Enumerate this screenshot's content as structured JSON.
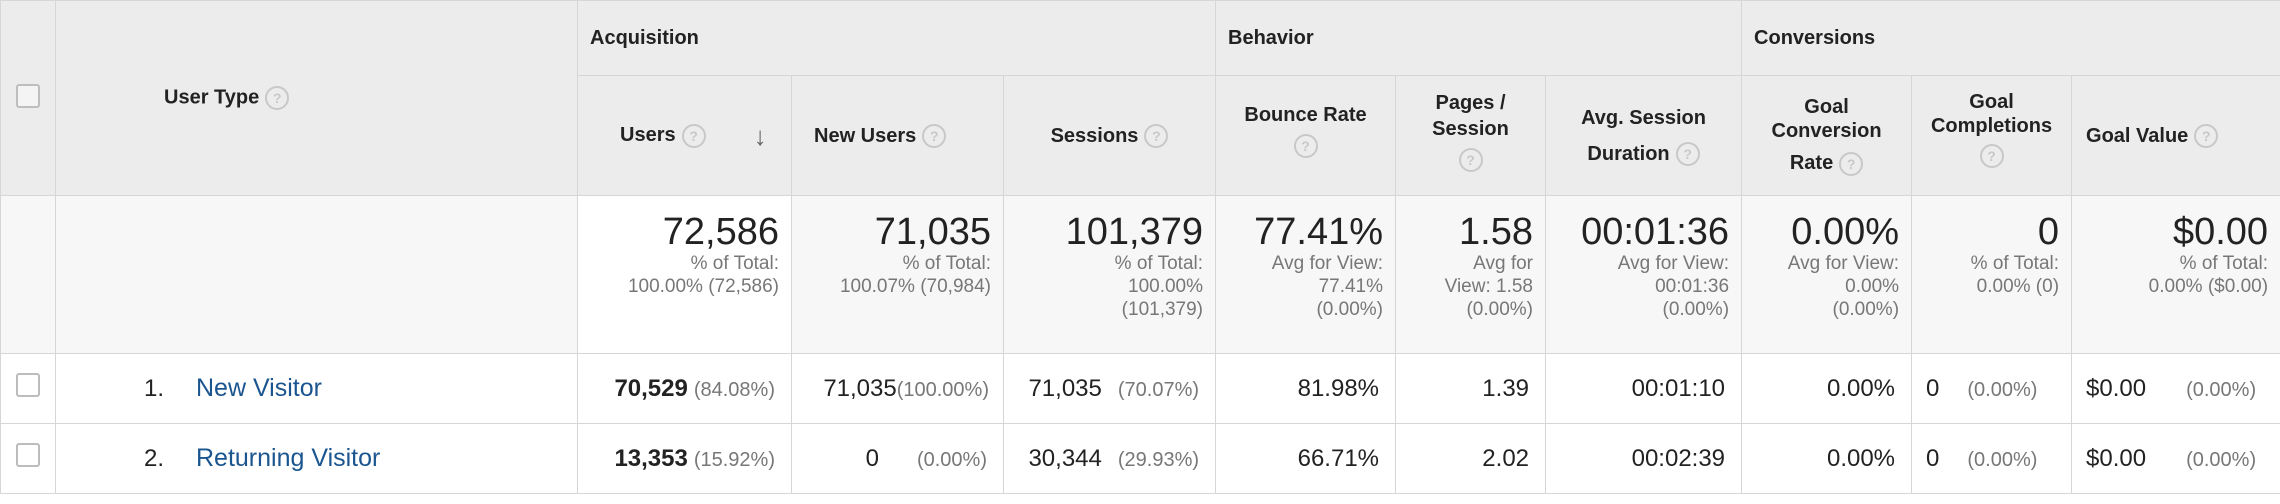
{
  "header": {
    "dimension_label": "User Type",
    "groups": {
      "acquisition": "Acquisition",
      "behavior": "Behavior",
      "conversions": "Conversions"
    },
    "columns": {
      "users": "Users",
      "new_users": "New Users",
      "sessions": "Sessions",
      "bounce_rate": "Bounce Rate",
      "pages_session_1": "Pages /",
      "pages_session_2": "Session",
      "avg_dur_1": "Avg. Session",
      "avg_dur_2": "Duration",
      "goal_conv_1": "Goal",
      "goal_conv_2": "Conversion",
      "goal_conv_3": "Rate",
      "goal_comp_1": "Goal",
      "goal_comp_2": "Completions",
      "goal_value": "Goal Value"
    },
    "help_glyph": "?",
    "sort_glyph": "↓"
  },
  "totals": {
    "users": {
      "value": "72,586",
      "l1": "% of Total:",
      "l2": "100.00% (72,586)"
    },
    "new_users": {
      "value": "71,035",
      "l1": "% of Total:",
      "l2": "100.07% (70,984)"
    },
    "sessions": {
      "value": "101,379",
      "l1": "% of Total:",
      "l2": "100.00%",
      "l3": "(101,379)"
    },
    "bounce_rate": {
      "value": "77.41%",
      "l1": "Avg for View:",
      "l2": "77.41%",
      "l3": "(0.00%)"
    },
    "pages_session": {
      "value": "1.58",
      "l1": "Avg for",
      "l2": "View: 1.58",
      "l3": "(0.00%)"
    },
    "avg_duration": {
      "value": "00:01:36",
      "l1": "Avg for View:",
      "l2": "00:01:36",
      "l3": "(0.00%)"
    },
    "goal_conv_rate": {
      "value": "0.00%",
      "l1": "Avg for View:",
      "l2": "0.00%",
      "l3": "(0.00%)"
    },
    "goal_completions": {
      "value": "0",
      "l1": "% of Total:",
      "l2": "0.00% (0)"
    },
    "goal_value": {
      "value": "$0.00",
      "l1": "% of Total:",
      "l2": "0.00% ($0.00)"
    }
  },
  "rows": [
    {
      "index": "1.",
      "name": "New Visitor",
      "users": "70,529",
      "users_pct": "(84.08%)",
      "new_users": "71,035",
      "new_users_pct": "(100.00%)",
      "sessions": "71,035",
      "sessions_pct": "(70.07%)",
      "bounce_rate": "81.98%",
      "pages_session": "1.39",
      "avg_duration": "00:01:10",
      "goal_conv_rate": "0.00%",
      "goal_completions": "0",
      "goal_completions_pct": "(0.00%)",
      "goal_value": "$0.00",
      "goal_value_pct": "(0.00%)"
    },
    {
      "index": "2.",
      "name": "Returning Visitor",
      "users": "13,353",
      "users_pct": "(15.92%)",
      "new_users": "0",
      "new_users_pct": "(0.00%)",
      "sessions": "30,344",
      "sessions_pct": "(29.93%)",
      "bounce_rate": "66.71%",
      "pages_session": "2.02",
      "avg_duration": "00:02:39",
      "goal_conv_rate": "0.00%",
      "goal_completions": "0",
      "goal_completions_pct": "(0.00%)",
      "goal_value": "$0.00",
      "goal_value_pct": "(0.00%)"
    }
  ]
}
